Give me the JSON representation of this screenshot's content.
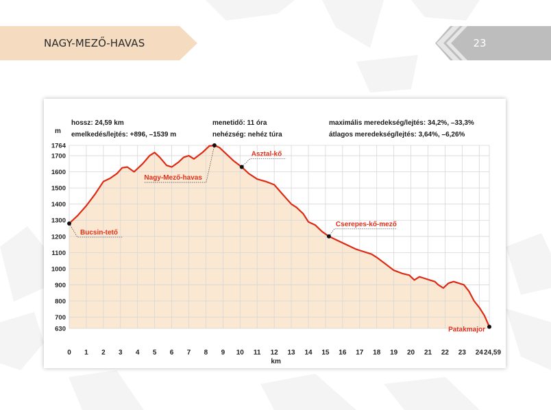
{
  "header": {
    "title": "NAGY-MEZŐ-HAVAS",
    "page_number": "23"
  },
  "info": {
    "length": "hossz: 24,59 km",
    "elevation": "emelkedés/lejtés: +896, –1539 m",
    "time": "menetidő: 11 óra",
    "difficulty": "nehézség: nehéz túra",
    "max_slope": "maximális meredekség/lejtés: 34,2%, –33,3%",
    "avg_slope": "átlagos meredekség/lejtés: 3,64%, –6,26%"
  },
  "colors": {
    "line": "#dd2a14",
    "fill": "#fbe8d3",
    "grid": "#d6d6d6",
    "label": "#e0301a",
    "banner": "#f5dcc0",
    "badge": "#bdbdbd"
  },
  "chart_data": {
    "type": "area",
    "xlabel": "km",
    "ylabel": "m",
    "xlim": [
      0,
      24.59
    ],
    "ylim": [
      630,
      1764
    ],
    "grid": true,
    "x_ticks": [
      "0",
      "1",
      "2",
      "3",
      "4",
      "5",
      "6",
      "7",
      "8",
      "9",
      "10",
      "11",
      "12",
      "13",
      "14",
      "15",
      "16",
      "17",
      "18",
      "19",
      "20",
      "21",
      "22",
      "23",
      "24",
      "24,59"
    ],
    "y_ticks": [
      "630",
      "700",
      "800",
      "900",
      "1000",
      "1100",
      "1200",
      "1300",
      "1400",
      "1500",
      "1600",
      "1700",
      "1764"
    ],
    "series": [
      {
        "x": [
          0,
          0.5,
          1,
          1.5,
          2,
          2.4,
          2.8,
          3.1,
          3.4,
          3.8,
          4.3,
          4.7,
          5,
          5.3,
          5.7,
          6,
          6.4,
          6.7,
          7,
          7.3,
          7.8,
          8.2,
          8.5,
          8.8,
          9.2,
          9.6,
          10.1,
          10.5,
          11,
          11.5,
          12,
          12.5,
          13,
          13.3,
          13.7,
          14,
          14.4,
          14.8,
          15.2,
          15.6,
          16,
          16.4,
          16.8,
          17.1,
          17.4,
          17.7,
          18,
          18.5,
          19,
          19.5,
          19.9,
          20.2,
          20.5,
          20.8,
          21.1,
          21.4,
          21.6,
          21.9,
          22.2,
          22.5,
          22.8,
          23.1,
          23.4,
          23.7,
          24,
          24.3,
          24.59
        ],
        "y": [
          1280,
          1330,
          1390,
          1460,
          1540,
          1560,
          1590,
          1625,
          1630,
          1600,
          1650,
          1700,
          1720,
          1690,
          1640,
          1630,
          1660,
          1690,
          1700,
          1680,
          1720,
          1760,
          1764,
          1750,
          1710,
          1670,
          1630,
          1590,
          1555,
          1540,
          1520,
          1460,
          1400,
          1380,
          1340,
          1290,
          1270,
          1230,
          1200,
          1180,
          1160,
          1140,
          1120,
          1110,
          1100,
          1090,
          1070,
          1030,
          990,
          970,
          960,
          930,
          950,
          940,
          930,
          920,
          900,
          880,
          910,
          920,
          910,
          900,
          860,
          800,
          760,
          710,
          640
        ]
      }
    ],
    "markers": [
      {
        "x": 0,
        "y": 1280,
        "label": "Bucsin-tető"
      },
      {
        "x": 8.5,
        "y": 1764,
        "label": "Nagy-Mező-havas"
      },
      {
        "x": 10.1,
        "y": 1630,
        "label": "Asztal-kő"
      },
      {
        "x": 15.2,
        "y": 1200,
        "label": "Cserepes-kő-mező"
      },
      {
        "x": 24.59,
        "y": 640,
        "label": "Patakmajor"
      }
    ]
  }
}
